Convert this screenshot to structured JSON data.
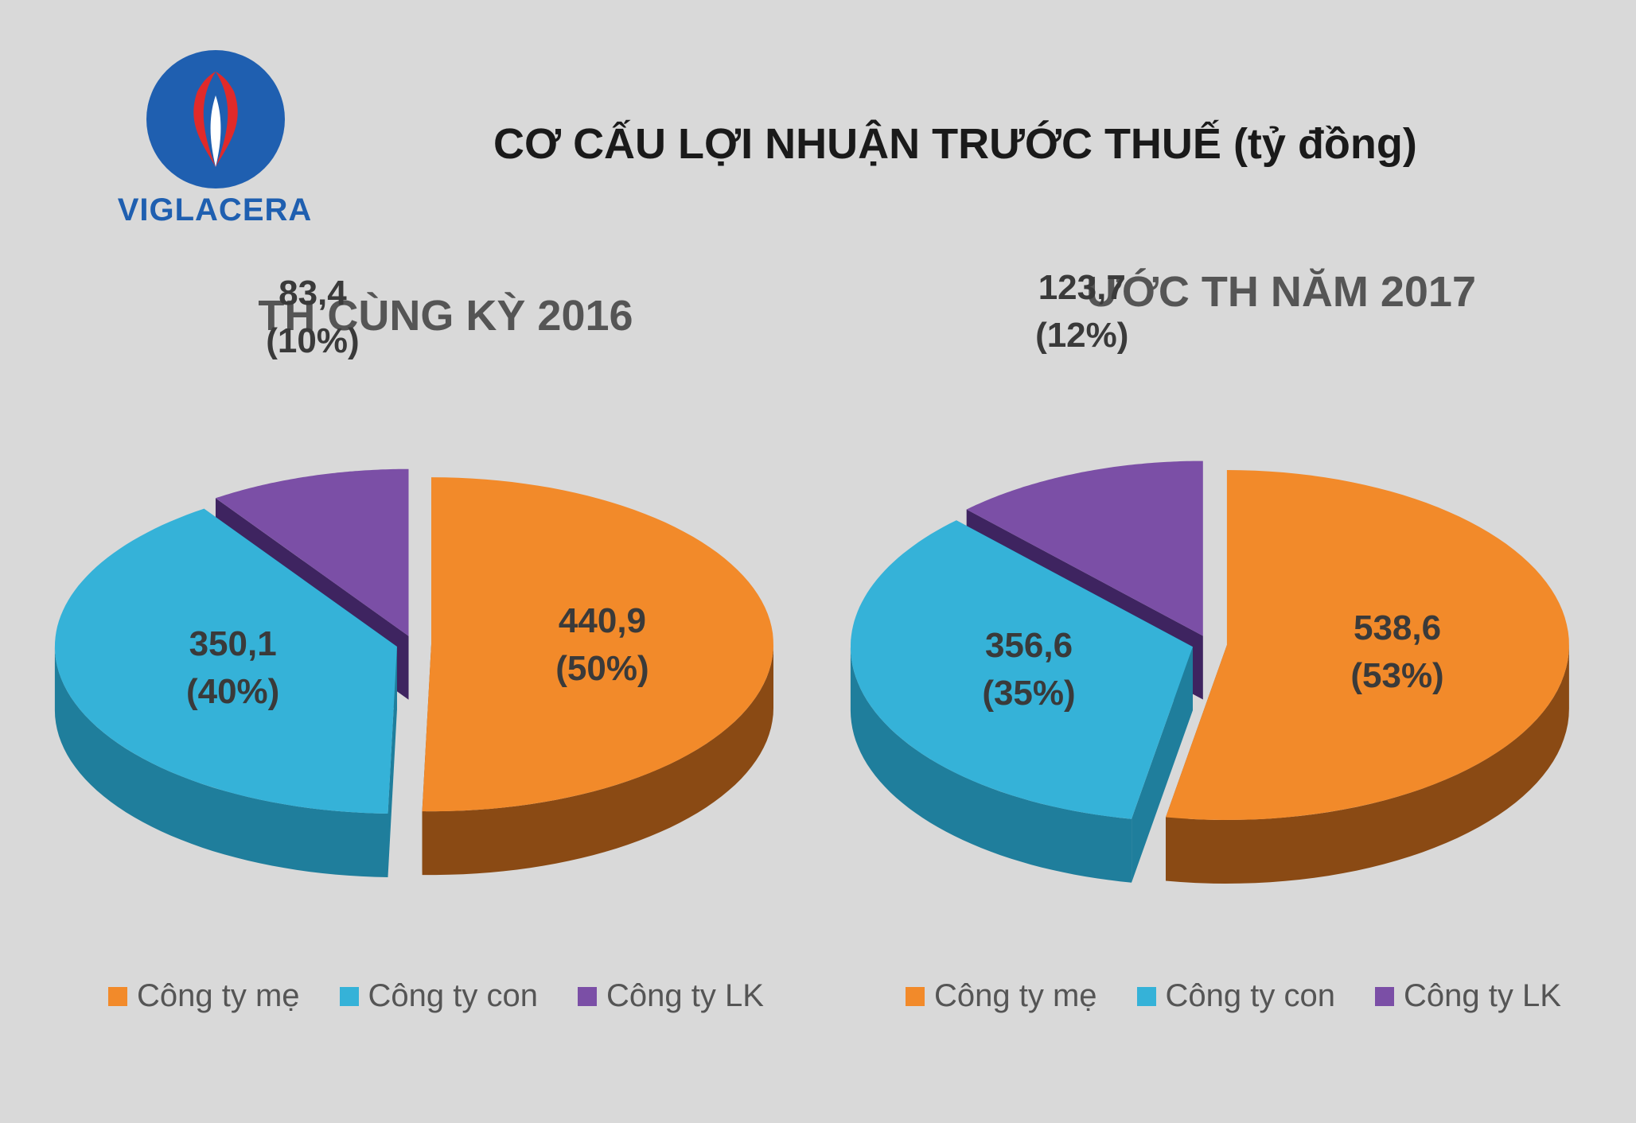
{
  "logo": {
    "text": "VIGLACERA"
  },
  "main_title": "CƠ CẤU LỢI NHUẬN TRƯỚC THUẾ  (tỷ đồng)",
  "colors": {
    "me": "#f28a2a",
    "con": "#35b2d8",
    "lk": "#7b4fa6",
    "background": "#d9d9d9"
  },
  "chart_data": [
    {
      "type": "pie",
      "title": "TH CÙNG KỲ 2016",
      "categories": [
        "Công ty mẹ",
        "Công ty con",
        "Công ty LK"
      ],
      "values": [
        440.9,
        350.1,
        83.4
      ],
      "value_labels": [
        "440,9",
        "350,1",
        "83,4"
      ],
      "percent_labels": [
        "(50%)",
        "(40%)",
        "(10%)"
      ],
      "legend": [
        "Công ty mẹ",
        "Công ty con",
        "Công ty LK"
      ],
      "legend_position": "bottom"
    },
    {
      "type": "pie",
      "title": "ƯỚC TH NĂM 2017",
      "categories": [
        "Công ty mẹ",
        "Công ty con",
        "Công ty LK"
      ],
      "values": [
        538.6,
        356.6,
        123.7
      ],
      "value_labels": [
        "538,6",
        "356,6",
        "123,7"
      ],
      "percent_labels": [
        "(53%)",
        "(35%)",
        "(12%)"
      ],
      "legend": [
        "Công ty mẹ",
        "Công ty con",
        "Công ty LK"
      ],
      "legend_position": "bottom"
    }
  ]
}
